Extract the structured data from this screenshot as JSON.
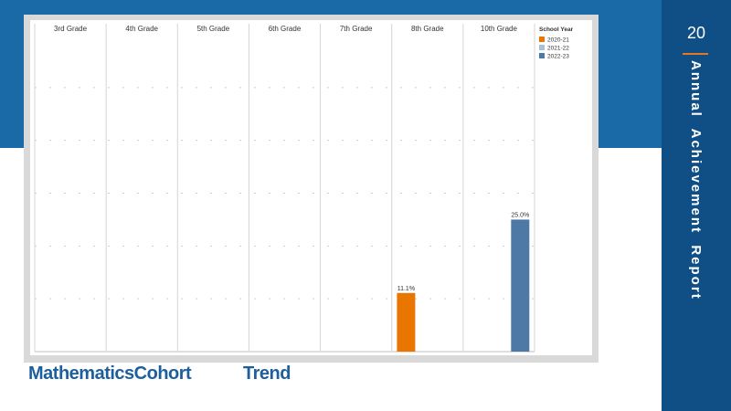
{
  "side": {
    "page_number": "20",
    "title": "Annual  Achievement  Report"
  },
  "caption": {
    "part1": "MathematicsCohort",
    "part2": "Trend"
  },
  "colors": {
    "2020-21": "#e87600",
    "2021-22": "#a7c0de",
    "2022-23": "#4e79a7"
  },
  "chart_data": {
    "type": "bar",
    "categories": [
      "3rd Grade",
      "4th Grade",
      "5th Grade",
      "6th Grade",
      "7th Grade",
      "8th Grade",
      "10th Grade"
    ],
    "legend_title": "School Year",
    "series": [
      {
        "name": "2020-21",
        "values": [
          null,
          null,
          null,
          null,
          null,
          11.1,
          null
        ],
        "labels": [
          null,
          null,
          null,
          null,
          null,
          "11.1%",
          null
        ]
      },
      {
        "name": "2021-22",
        "values": [
          null,
          null,
          null,
          null,
          null,
          null,
          null
        ],
        "labels": [
          null,
          null,
          null,
          null,
          null,
          null,
          null
        ]
      },
      {
        "name": "2022-23",
        "values": [
          null,
          null,
          null,
          null,
          null,
          null,
          25.0
        ],
        "labels": [
          null,
          null,
          null,
          null,
          null,
          null,
          "25.0%"
        ]
      }
    ],
    "ylim": [
      0,
      60
    ],
    "grid": true,
    "legend_position": "top-right"
  }
}
